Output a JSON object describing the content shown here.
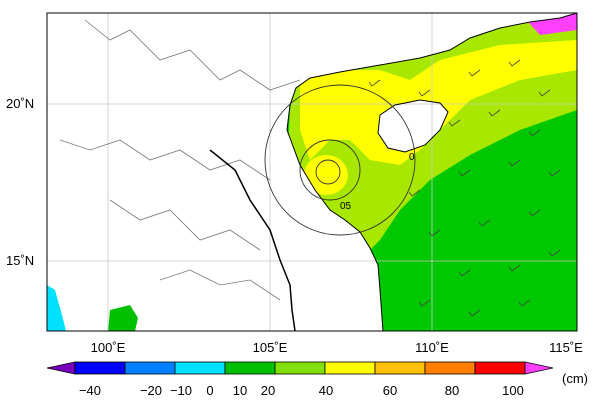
{
  "map": {
    "lon_ticks": [
      {
        "label": "100˚E",
        "value": 100
      },
      {
        "label": "105˚E",
        "value": 105
      },
      {
        "label": "110˚E",
        "value": 110
      },
      {
        "label": "115˚E",
        "value": 115
      }
    ],
    "lat_ticks": [
      {
        "label": "20˚N",
        "value": 20
      },
      {
        "label": "15˚N",
        "value": 15
      }
    ],
    "contour_labels": [
      "05",
      "0"
    ]
  },
  "colorbar": {
    "unit": "(cm)",
    "labels": [
      "−40",
      "−20",
      "−10",
      "0",
      "10",
      "20",
      "40",
      "60",
      "80",
      "100"
    ],
    "colors": [
      "#7a00c0",
      "#0000ff",
      "#0080ff",
      "#00e0ff",
      "#00c000",
      "#80e000",
      "#ffff00",
      "#ffc000",
      "#ff8000",
      "#ff0000",
      "#ff40ff"
    ]
  }
}
